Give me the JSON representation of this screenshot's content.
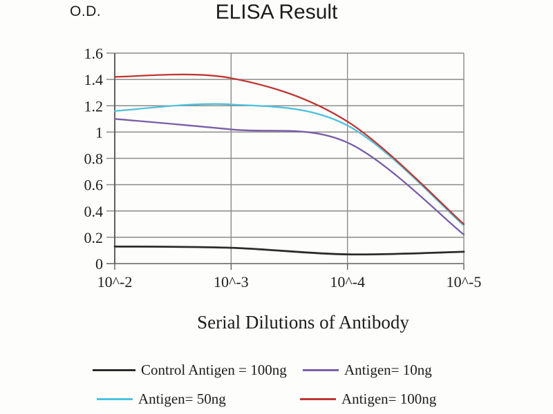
{
  "chart_data": {
    "type": "line",
    "title": "ELISA Result",
    "ylabel": "O.D.",
    "xlabel": "Serial Dilutions of Antibody",
    "x_labels": [
      "10^-2",
      "10^-3",
      "10^-4",
      "10^-5"
    ],
    "ylim": [
      0,
      1.6
    ],
    "ytick_step": 0.2,
    "ytick_labels": [
      "0",
      "0.2",
      "0.4",
      "0.6",
      "0.8",
      "1",
      "1.2",
      "1.4",
      "1.6"
    ],
    "grid": true,
    "legend_position": "bottom",
    "colors": {
      "grid": "#8a8a8a",
      "axis": "#5f5f5f",
      "text": "#1c1c1c"
    },
    "series": [
      {
        "name": "Control Antigen = 100ng",
        "color": "#2b2b2b",
        "values": [
          0.13,
          0.12,
          0.07,
          0.09
        ]
      },
      {
        "name": "Antigen= 10ng",
        "color": "#7a5da8",
        "values": [
          1.1,
          1.02,
          0.92,
          0.22
        ]
      },
      {
        "name": "Antigen= 50ng",
        "color": "#4ec1de",
        "values": [
          1.16,
          1.21,
          1.05,
          0.29
        ]
      },
      {
        "name": "Antigen= 100ng",
        "color": "#bf3632",
        "values": [
          1.42,
          1.41,
          1.08,
          0.3
        ]
      }
    ]
  }
}
